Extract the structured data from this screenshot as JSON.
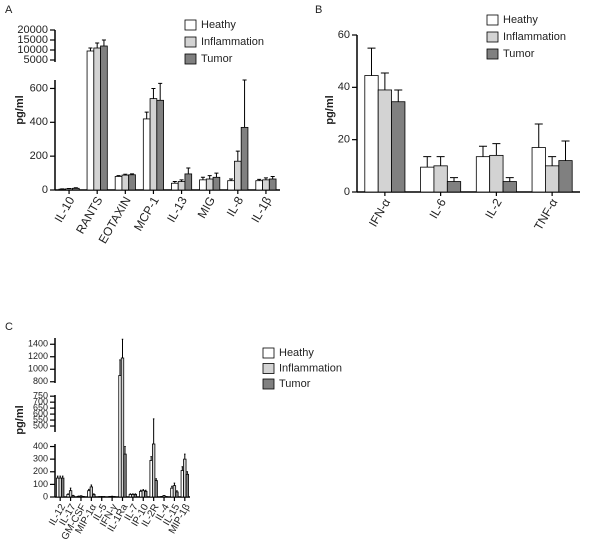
{
  "chart_data": [
    {
      "type": "bar",
      "panel_label": "A",
      "ylabel": "pg/ml",
      "categories": [
        "IL-10",
        "RANTS",
        "EOTAXIN",
        "MCP-1",
        "IL-13",
        "MIG",
        "IL-8",
        "IL-1β"
      ],
      "series": [
        {
          "name": "Heathy",
          "color": "#ffffff",
          "values": [
            5,
            9500,
            80,
            420,
            40,
            60,
            55,
            55
          ],
          "errors": [
            2,
            1500,
            5,
            40,
            10,
            15,
            10,
            8
          ]
        },
        {
          "name": "Inflammation",
          "color": "#d3d3d3",
          "values": [
            7,
            11000,
            88,
            540,
            50,
            65,
            170,
            60
          ],
          "errors": [
            2,
            2500,
            5,
            60,
            10,
            20,
            60,
            12
          ]
        },
        {
          "name": "Tumor",
          "color": "#808080",
          "values": [
            10,
            12000,
            90,
            530,
            95,
            75,
            370,
            65
          ],
          "errors": [
            3,
            3000,
            5,
            100,
            35,
            25,
            280,
            15
          ]
        }
      ],
      "y_segments": [
        {
          "ylim": [
            0,
            650
          ],
          "yticks": [
            0,
            200,
            400,
            600
          ]
        },
        {
          "ylim": [
            4000,
            20000
          ],
          "yticks": [
            5000,
            10000,
            15000,
            20000
          ]
        }
      ]
    },
    {
      "type": "bar",
      "panel_label": "B",
      "ylabel": "pg/ml",
      "categories": [
        "IFN-α",
        "IL-6",
        "IL-2",
        "TNF-α"
      ],
      "series": [
        {
          "name": "Heathy",
          "color": "#ffffff",
          "values": [
            44.5,
            9.5,
            13.5,
            17
          ],
          "errors": [
            10.5,
            4,
            4,
            9
          ]
        },
        {
          "name": "Inflammation",
          "color": "#d3d3d3",
          "values": [
            39,
            10,
            14,
            10
          ],
          "errors": [
            6.5,
            3.5,
            4.5,
            3.5
          ]
        },
        {
          "name": "Tumor",
          "color": "#808080",
          "values": [
            34.5,
            4,
            4,
            12
          ],
          "errors": [
            4.5,
            1.5,
            1.5,
            7.5
          ]
        }
      ],
      "ylim": [
        0,
        60
      ],
      "yticks": [
        0,
        20,
        40,
        60
      ]
    },
    {
      "type": "bar",
      "panel_label": "C",
      "ylabel": "pg/ml",
      "categories": [
        "IL-12",
        "IL-17",
        "GM-CSF",
        "MIP-1α",
        "IL-5",
        "IFN-γ",
        "IL-1Ra",
        "IL-7",
        "IP-10",
        "IL-2R",
        "IL-4",
        "IL-15",
        "MIP-1β"
      ],
      "series": [
        {
          "name": "Heathy",
          "color": "#ffffff",
          "values": [
            150,
            20,
            5,
            50,
            2,
            3,
            900,
            20,
            45,
            290,
            3,
            70,
            210
          ],
          "errors": [
            15,
            5,
            2,
            10,
            1,
            1,
            250,
            5,
            8,
            30,
            1,
            15,
            30
          ]
        },
        {
          "name": "Inflammation",
          "color": "#d3d3d3",
          "values": [
            150,
            50,
            8,
            80,
            3,
            5,
            1180,
            20,
            50,
            420,
            10,
            90,
            300
          ],
          "errors": [
            15,
            20,
            2,
            15,
            1,
            1,
            300,
            5,
            8,
            140,
            2,
            20,
            40
          ]
        },
        {
          "name": "Tumor",
          "color": "#808080",
          "values": [
            150,
            10,
            3,
            20,
            2,
            2,
            340,
            20,
            45,
            130,
            2,
            40,
            180
          ],
          "errors": [
            15,
            3,
            1,
            5,
            1,
            1,
            60,
            5,
            8,
            15,
            1,
            10,
            20
          ]
        }
      ],
      "y_segments": [
        {
          "ylim": [
            0,
            420
          ],
          "yticks": [
            0,
            100,
            200,
            300,
            400
          ]
        },
        {
          "ylim": [
            450,
            760
          ],
          "yticks": [
            500,
            550,
            600,
            650,
            700,
            750
          ]
        },
        {
          "ylim": [
            780,
            1500
          ],
          "yticks": [
            800,
            1000,
            1200,
            1400
          ]
        }
      ]
    }
  ]
}
